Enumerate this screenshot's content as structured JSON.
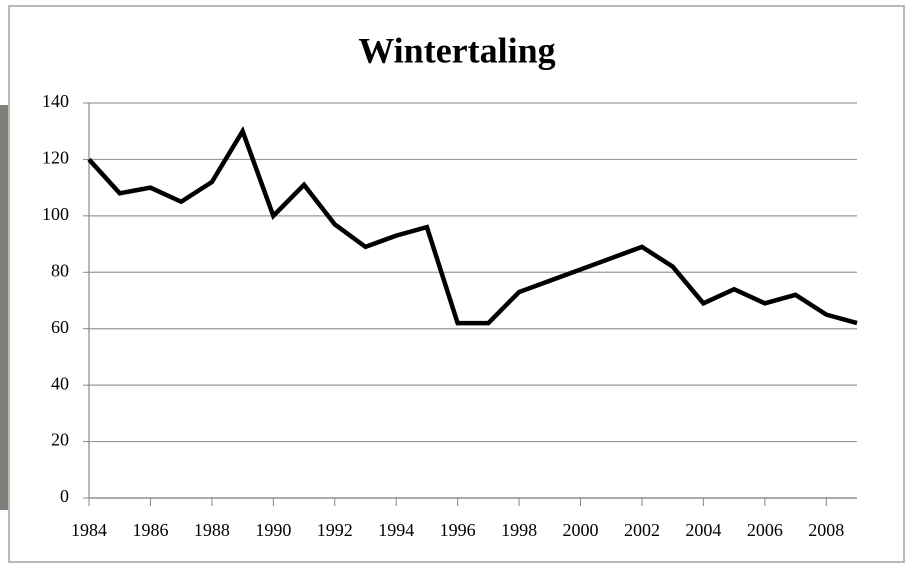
{
  "chart_data": {
    "type": "line",
    "title": "Wintertaling",
    "x": [
      1984,
      1985,
      1986,
      1987,
      1988,
      1989,
      1990,
      1991,
      1992,
      1993,
      1994,
      1995,
      1996,
      1997,
      1998,
      1999,
      2000,
      2001,
      2002,
      2003,
      2004,
      2005,
      2006,
      2007,
      2008,
      2009
    ],
    "series": [
      {
        "color": "#000000",
        "values": [
          120,
          108,
          110,
          105,
          112,
          130,
          100,
          111,
          97,
          89,
          93,
          96,
          62,
          62,
          73,
          77,
          81,
          85,
          89,
          82,
          69,
          74,
          69,
          72,
          65,
          62
        ]
      }
    ],
    "xlim": [
      1984,
      2009
    ],
    "xticks": [
      1984,
      1986,
      1988,
      1990,
      1992,
      1994,
      1996,
      1998,
      2000,
      2002,
      2004,
      2006,
      2008
    ],
    "ylim": [
      0,
      140
    ],
    "yticks": [
      0,
      20,
      40,
      60,
      80,
      100,
      120,
      140
    ],
    "grid": true
  }
}
